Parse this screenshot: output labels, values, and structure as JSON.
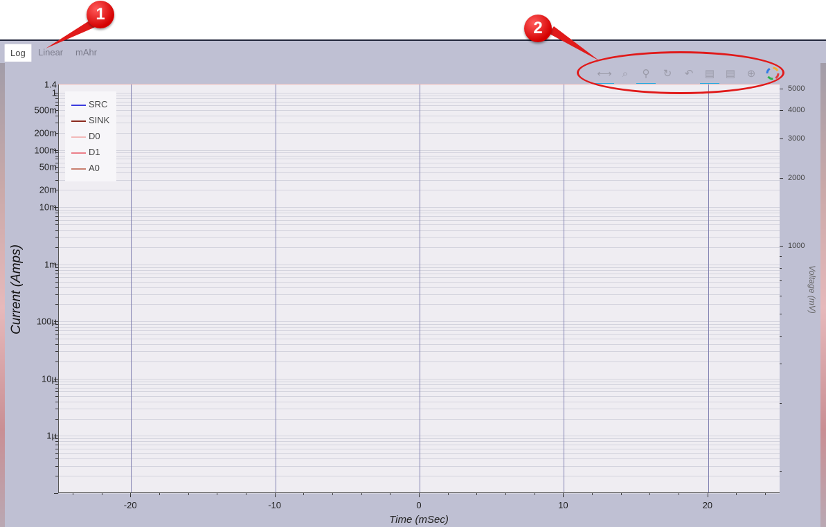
{
  "tabs": [
    {
      "label": "Log",
      "active": true
    },
    {
      "label": "Linear",
      "active": false
    },
    {
      "label": "mAhr",
      "active": false
    }
  ],
  "toolbar": {
    "tools": [
      {
        "icon": "pan-icon",
        "glyph": "⟷",
        "active": true
      },
      {
        "icon": "box-zoom-icon",
        "glyph": "⌕",
        "active": false
      },
      {
        "icon": "wheel-zoom-icon",
        "glyph": "⚲",
        "active": true
      },
      {
        "icon": "reset-icon",
        "glyph": "↻",
        "active": false
      },
      {
        "icon": "undo-icon",
        "glyph": "↶",
        "active": false
      },
      {
        "icon": "hover-icon",
        "glyph": "▤",
        "active": true
      },
      {
        "icon": "hover-alt-icon",
        "glyph": "▤",
        "active": false
      },
      {
        "icon": "crosshair-icon",
        "glyph": "⊕",
        "active": false
      },
      {
        "icon": "bokeh-logo-icon",
        "glyph": "",
        "active": false
      }
    ]
  },
  "annotations": {
    "badge1": "1",
    "badge2": "2"
  },
  "chart_data": {
    "type": "line",
    "xlabel": "Time (mSec)",
    "ylabel": "Current (Amps)",
    "y2label": "Voltage (mV)",
    "x_ticks": [
      "-20",
      "-10",
      "0",
      "10",
      "20"
    ],
    "x_tick_values": [
      -20,
      -10,
      0,
      10,
      20
    ],
    "xlim": [
      -25,
      25
    ],
    "y_scale": "log",
    "y_ticks": [
      "1.4",
      "1",
      "500m",
      "200m",
      "100m",
      "50m",
      "20m",
      "10m",
      "1m",
      "100µ",
      "10µ",
      "1µ"
    ],
    "y_tick_values": [
      1.4,
      1,
      0.5,
      0.2,
      0.1,
      0.05,
      0.02,
      0.01,
      0.001,
      0.0001,
      1e-05,
      1e-06
    ],
    "ylim": [
      1e-07,
      1.4
    ],
    "y2_scale": "log",
    "y2_ticks": [
      "5000",
      "4000",
      "3000",
      "2000",
      "1000"
    ],
    "y2_tick_values": [
      5000,
      4000,
      3000,
      2000,
      1000
    ],
    "y2lim": [
      80,
      5200
    ],
    "grid": true,
    "legend_position": "top-left",
    "series": [
      {
        "name": "SRC",
        "color": "#3a3adf",
        "values": []
      },
      {
        "name": "SINK",
        "color": "#8b2a1e",
        "values": []
      },
      {
        "name": "D0",
        "color": "#f2b8b8",
        "values": []
      },
      {
        "name": "D1",
        "color": "#ec7f8a",
        "values": []
      },
      {
        "name": "A0",
        "color": "#c98070",
        "values": []
      }
    ]
  }
}
